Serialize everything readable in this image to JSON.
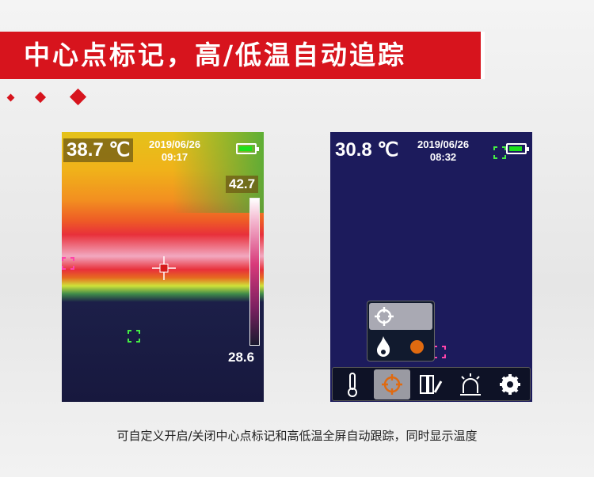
{
  "banner": {
    "title": "中心点标记，高/低温自动追踪"
  },
  "left_screen": {
    "temperature": "38.7 ℃",
    "date": "2019/06/26",
    "time": "09:17",
    "scale_max": "42.7",
    "scale_min": "28.6",
    "battery_level": 1.0
  },
  "right_screen": {
    "temperature": "30.8 ℃",
    "date": "2019/06/26",
    "time": "08:32",
    "battery_level": 1.0,
    "popup_menu": [
      {
        "icon": "crosshair-icon",
        "selected": true
      },
      {
        "icon": "flame-icon",
        "toggle_color": "#e06a10"
      }
    ],
    "toolbar": [
      {
        "icon": "thermometer-icon"
      },
      {
        "icon": "crosshair-icon",
        "active": true
      },
      {
        "icon": "palette-icon"
      },
      {
        "icon": "alarm-icon"
      },
      {
        "icon": "gear-icon"
      }
    ]
  },
  "caption": "可自定义开启/关闭中心点标记和高低温全屏自动跟踪，同时显示温度",
  "colors": {
    "accent": "#d7141d",
    "highlight": "#e06a10"
  }
}
